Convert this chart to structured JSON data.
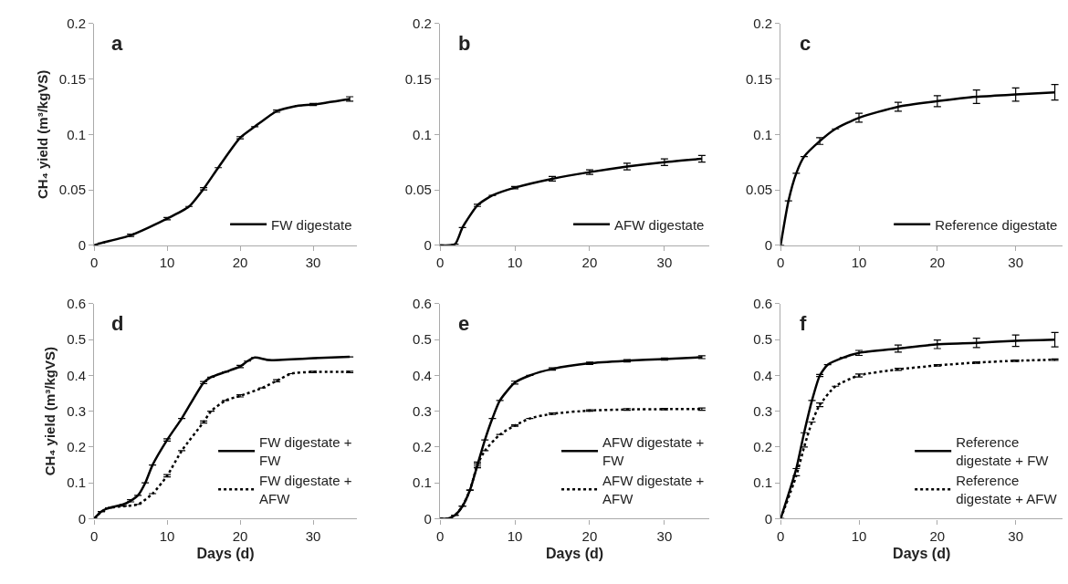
{
  "chart_data": [
    {
      "type": "line",
      "title": "a",
      "ylabel": "CH₄ yield (m³/kgVS)",
      "xlim": [
        0,
        36
      ],
      "xticks": [
        0,
        10,
        20,
        30
      ],
      "ylim": [
        0,
        0.2
      ],
      "yticks": [
        0,
        0.05,
        0.1,
        0.15,
        0.2
      ],
      "legend": "bottom right",
      "marker": "none",
      "series": [
        {
          "name": "FW digestate",
          "color": "#000000",
          "line_style": "solid",
          "x": [
            0,
            1,
            5,
            10,
            13,
            15,
            17,
            20,
            22,
            25,
            28,
            30,
            35
          ],
          "values": [
            0,
            0.002,
            0.009,
            0.024,
            0.035,
            0.051,
            0.07,
            0.097,
            0.107,
            0.121,
            0.126,
            0.127,
            0.132
          ],
          "errors": [
            null,
            null,
            0.001,
            0.001,
            null,
            0.001,
            null,
            0.001,
            null,
            0.001,
            null,
            0.001,
            0.002
          ]
        }
      ]
    },
    {
      "type": "line",
      "title": "b",
      "xlim": [
        0,
        36
      ],
      "xticks": [
        0,
        10,
        20,
        30
      ],
      "ylim": [
        0,
        0.2
      ],
      "yticks": [
        0,
        0.05,
        0.1,
        0.15,
        0.2
      ],
      "legend": "bottom right",
      "marker": "none",
      "series": [
        {
          "name": "AFW digestate",
          "color": "#000000",
          "line_style": "solid",
          "x": [
            0,
            2,
            3,
            5,
            7,
            10,
            15,
            20,
            25,
            30,
            35
          ],
          "values": [
            0,
            0.001,
            0.016,
            0.036,
            0.045,
            0.052,
            0.06,
            0.066,
            0.071,
            0.075,
            0.078
          ],
          "errors": [
            null,
            null,
            null,
            0.001,
            null,
            0.001,
            0.002,
            0.002,
            0.003,
            0.003,
            0.003
          ]
        }
      ]
    },
    {
      "type": "line",
      "title": "c",
      "xlim": [
        0,
        36
      ],
      "xticks": [
        0,
        10,
        20,
        30
      ],
      "ylim": [
        0,
        0.2
      ],
      "yticks": [
        0,
        0.05,
        0.1,
        0.15,
        0.2
      ],
      "legend": "bottom right",
      "marker": "none",
      "series": [
        {
          "name": "Reference digestate",
          "color": "#000000",
          "line_style": "solid",
          "x": [
            0,
            1,
            2,
            3,
            5,
            7,
            10,
            15,
            20,
            25,
            30,
            35
          ],
          "values": [
            0,
            0.04,
            0.065,
            0.08,
            0.094,
            0.105,
            0.115,
            0.125,
            0.13,
            0.134,
            0.136,
            0.138
          ],
          "errors": [
            null,
            null,
            null,
            null,
            0.003,
            null,
            0.004,
            0.004,
            0.005,
            0.006,
            0.006,
            0.007
          ]
        }
      ]
    },
    {
      "type": "line",
      "title": "d",
      "xlabel": "Days (d)",
      "ylabel": "CH₄ yield (m³/kgVS)",
      "xlim": [
        0,
        36
      ],
      "xticks": [
        0,
        10,
        20,
        30
      ],
      "ylim": [
        0,
        0.6
      ],
      "yticks": [
        0,
        0.1,
        0.2,
        0.3,
        0.4,
        0.5,
        0.6
      ],
      "legend": "bottom right",
      "marker": "none",
      "series": [
        {
          "name": "FW digestate + FW",
          "color": "#000000",
          "line_style": "solid",
          "x": [
            0,
            1,
            2,
            4,
            5,
            6,
            7,
            8,
            10,
            12,
            15,
            16,
            18,
            20,
            21,
            22,
            24,
            30,
            35
          ],
          "values": [
            0,
            0.02,
            0.03,
            0.04,
            0.05,
            0.065,
            0.1,
            0.15,
            0.22,
            0.28,
            0.38,
            0.395,
            0.41,
            0.425,
            0.44,
            0.45,
            0.443,
            0.448,
            0.452
          ],
          "errors": [
            null,
            null,
            null,
            null,
            0.003,
            null,
            null,
            null,
            0.003,
            null,
            0.003,
            null,
            null,
            0.003,
            null,
            null,
            null,
            null,
            null
          ]
        },
        {
          "name": "FW digestate + AFW",
          "color": "#000000",
          "line_style": "dotted",
          "x": [
            0,
            1,
            2,
            4,
            6,
            8,
            10,
            12,
            15,
            16,
            18,
            20,
            23,
            25,
            27,
            30,
            35
          ],
          "values": [
            0,
            0.02,
            0.03,
            0.035,
            0.04,
            0.07,
            0.12,
            0.19,
            0.27,
            0.3,
            0.33,
            0.343,
            0.365,
            0.385,
            0.405,
            0.41,
            0.41
          ],
          "errors": [
            null,
            null,
            null,
            null,
            null,
            null,
            0.003,
            null,
            0.003,
            null,
            null,
            0.003,
            null,
            0.003,
            null,
            0.002,
            0.002
          ]
        }
      ]
    },
    {
      "type": "line",
      "title": "e",
      "xlabel": "Days (d)",
      "xlim": [
        0,
        36
      ],
      "xticks": [
        0,
        10,
        20,
        30
      ],
      "ylim": [
        0,
        0.6
      ],
      "yticks": [
        0,
        0.1,
        0.2,
        0.3,
        0.4,
        0.5,
        0.6
      ],
      "legend": "bottom right",
      "marker": "none",
      "series": [
        {
          "name": "AFW digestate + FW",
          "color": "#000000",
          "line_style": "solid",
          "x": [
            0,
            1,
            2,
            3,
            4,
            5,
            6,
            7,
            8,
            10,
            12,
            15,
            20,
            25,
            30,
            35
          ],
          "values": [
            0,
            0,
            0.01,
            0.035,
            0.08,
            0.15,
            0.22,
            0.28,
            0.33,
            0.38,
            0.4,
            0.418,
            0.434,
            0.441,
            0.446,
            0.451
          ],
          "errors": [
            null,
            null,
            null,
            null,
            null,
            0.008,
            null,
            null,
            null,
            0.004,
            null,
            0.003,
            0.003,
            0.003,
            0.003,
            0.004
          ]
        },
        {
          "name": "AFW digestate + AFW",
          "color": "#000000",
          "line_style": "dotted",
          "x": [
            0,
            1,
            2,
            3,
            4,
            5,
            6,
            8,
            10,
            12,
            15,
            20,
            25,
            30,
            35
          ],
          "values": [
            0,
            0,
            0.01,
            0.035,
            0.08,
            0.15,
            0.19,
            0.235,
            0.26,
            0.28,
            0.293,
            0.302,
            0.305,
            0.306,
            0.306
          ],
          "errors": [
            null,
            null,
            null,
            null,
            null,
            0.003,
            null,
            null,
            0.002,
            null,
            0.002,
            0.002,
            0.002,
            0.002,
            0.003
          ]
        }
      ]
    },
    {
      "type": "line",
      "title": "f",
      "xlabel": "Days (d)",
      "xlim": [
        0,
        36
      ],
      "xticks": [
        0,
        10,
        20,
        30
      ],
      "ylim": [
        0,
        0.6
      ],
      "yticks": [
        0,
        0.1,
        0.2,
        0.3,
        0.4,
        0.5,
        0.6
      ],
      "legend": "bottom right",
      "marker": "none",
      "series": [
        {
          "name": "Reference digestate + FW",
          "color": "#000000",
          "line_style": "solid",
          "x": [
            0,
            2,
            3,
            4,
            5,
            6,
            8,
            10,
            15,
            20,
            25,
            30,
            35
          ],
          "values": [
            0,
            0.14,
            0.24,
            0.33,
            0.4,
            0.43,
            0.45,
            0.463,
            0.475,
            0.487,
            0.491,
            0.497,
            0.5
          ],
          "errors": [
            null,
            null,
            null,
            null,
            0.003,
            null,
            null,
            0.007,
            0.01,
            0.012,
            0.013,
            0.016,
            0.02
          ]
        },
        {
          "name": "Reference digestate + AFW",
          "color": "#000000",
          "line_style": "dotted",
          "x": [
            0,
            2,
            3,
            4,
            5,
            7,
            10,
            15,
            20,
            25,
            30,
            35
          ],
          "values": [
            0,
            0.12,
            0.2,
            0.27,
            0.318,
            0.37,
            0.4,
            0.417,
            0.428,
            0.436,
            0.441,
            0.444
          ],
          "errors": [
            null,
            null,
            null,
            null,
            0.005,
            null,
            0.004,
            0.003,
            0.002,
            0.002,
            0.002,
            0.002
          ]
        }
      ]
    }
  ]
}
